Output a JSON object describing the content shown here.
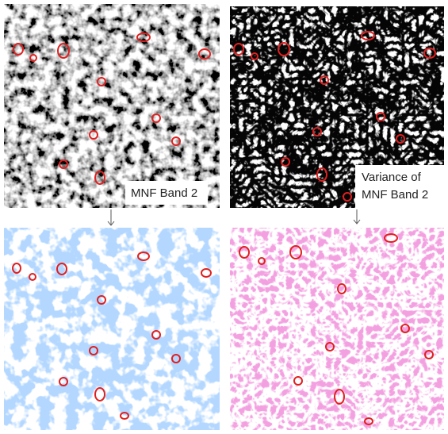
{
  "labels": {
    "mnf_band": "MNF Band 2",
    "variance": [
      "Variance of",
      "MNF Band 2"
    ]
  }
}
